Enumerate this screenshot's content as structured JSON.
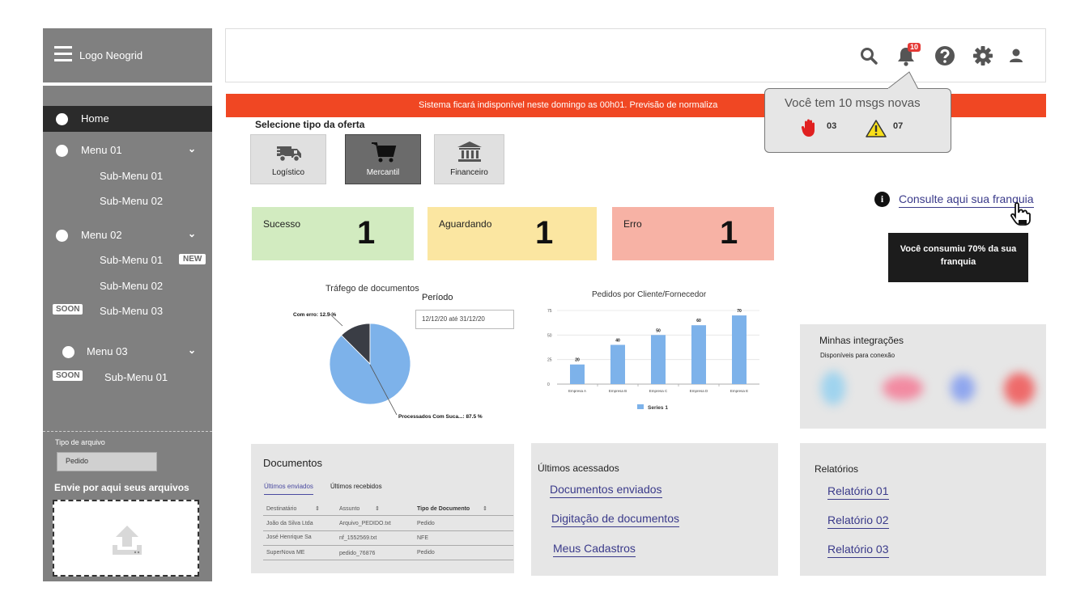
{
  "sidebar": {
    "logo": "Logo Neogrid",
    "items": [
      {
        "label": "Home"
      },
      {
        "label": "Menu 01"
      },
      {
        "label": "Sub-Menu 01"
      },
      {
        "label": "Sub-Menu 02"
      },
      {
        "label": "Menu 02"
      },
      {
        "label": "Sub-Menu 01",
        "badge": "NEW"
      },
      {
        "label": "Sub-Menu 02"
      },
      {
        "label": "Sub-Menu 03",
        "badge": "SOON"
      },
      {
        "label": "Menu 03"
      },
      {
        "label": "Sub-Menu 01",
        "badge": "SOON"
      }
    ],
    "file_type_label": "Tipo de arquivo",
    "file_type_value": "Pedido",
    "upload_title": "Envie por aqui seus arquivos"
  },
  "header": {
    "notification_count": "10"
  },
  "banner": {
    "text": "Sistema ficará indisponível neste domingo as 00h01. Previsão de normaliza"
  },
  "notifications": {
    "title": "Você tem 10 msgs novas",
    "stop_count": "03",
    "warning_count": "07"
  },
  "offer": {
    "title": "Selecione tipo da oferta",
    "options": [
      {
        "label": "Logístico",
        "icon": "truck-icon"
      },
      {
        "label": "Mercantil",
        "icon": "cart-icon",
        "selected": true
      },
      {
        "label": "Financeiro",
        "icon": "bank-icon"
      }
    ]
  },
  "status": {
    "success": {
      "label": "Sucesso",
      "value": "1",
      "color": "#d2ebc0"
    },
    "waiting": {
      "label": "Aguardando",
      "value": "1",
      "color": "#fbe6a1"
    },
    "error": {
      "label": "Erro",
      "value": "1",
      "color": "#f7b2a5"
    }
  },
  "franquia": {
    "link": "Consulte aqui sua franquia",
    "tooltip": "Você consumiu 70% da sua franquia"
  },
  "periodo": {
    "label": "Período",
    "value": "12/12/20 até 31/12/20"
  },
  "chart_data": [
    {
      "type": "pie",
      "title": "Tráfego de documentos",
      "slices": [
        {
          "label": "Com erro: 12.5 %",
          "value": 12.5,
          "color": "#3a3d45"
        },
        {
          "label": "Processados Com Suca...: 87.5 %",
          "value": 87.5,
          "color": "#7db2ea"
        }
      ]
    },
    {
      "type": "bar",
      "title": "Pedidos por Cliente/Fornecedor",
      "categories": [
        "Empresa A",
        "Empresa B",
        "Empresa C",
        "Empresa D",
        "Empresa E"
      ],
      "series": [
        {
          "name": "Series 1",
          "values": [
            20,
            40,
            50,
            60,
            70
          ],
          "color": "#7db2ea"
        }
      ],
      "yticks": [
        "0",
        "25",
        "50",
        "75"
      ],
      "ylim": [
        0,
        75
      ],
      "legend": "bottom"
    }
  ],
  "integrations": {
    "title": "Minhas integrações",
    "subtitle": "Disponíveis para conexão"
  },
  "documents": {
    "title": "Documentos",
    "tabs": [
      "Últimos enviados",
      "Últimos recebidos"
    ],
    "columns": [
      "Destinatário",
      "Assunto",
      "Tipo de Documento"
    ],
    "rows": [
      [
        "João da Silva Ltda",
        "Arquivo_PEDIDO.txt",
        "Pedido"
      ],
      [
        "José Henrique Sa",
        "nf_1552569.txt",
        "NFE"
      ],
      [
        "SuperNova ME",
        "pedido_76876",
        "Pedido"
      ]
    ]
  },
  "recent": {
    "title": "Últimos acessados",
    "links": [
      "Documentos enviados",
      "Digitação de documentos",
      "Meus Cadastros"
    ]
  },
  "reports": {
    "title": "Relatórios",
    "links": [
      "Relatório 01",
      "Relatório 02",
      "Relatório 03"
    ]
  }
}
